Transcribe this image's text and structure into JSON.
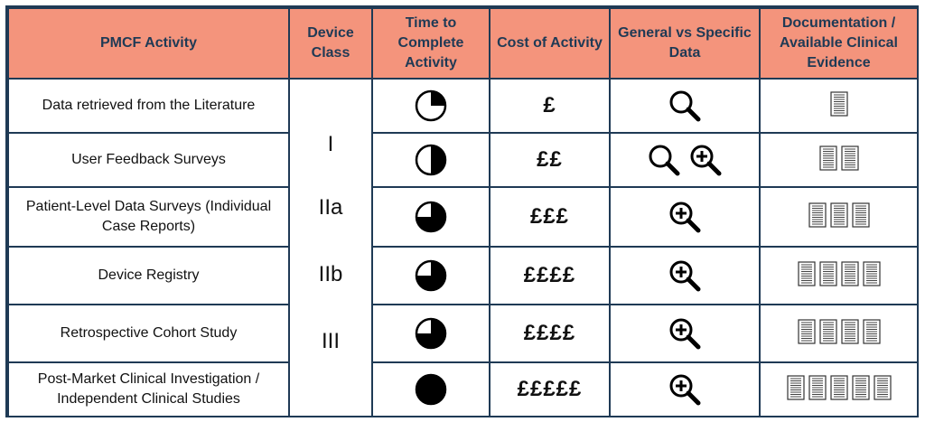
{
  "headers": {
    "activity": "PMCF Activity",
    "device_class": "Device Class",
    "time": "Time to Complete Activity",
    "cost": "Cost of Activity",
    "data_type": "General vs Specific Data",
    "documentation": "Documentation / Available Clinical Evidence"
  },
  "device_classes": [
    "I",
    "IIa",
    "IIb",
    "III"
  ],
  "rows": [
    {
      "activity": "Data retrieved from the Literature",
      "time_fraction": 0.25,
      "cost": "£",
      "data_icons": [
        "general-search-icon"
      ],
      "doc_count": 1
    },
    {
      "activity": "User Feedback Surveys",
      "time_fraction": 0.5,
      "cost": "££",
      "data_icons": [
        "general-search-icon",
        "specific-zoom-in-icon"
      ],
      "doc_count": 2
    },
    {
      "activity": "Patient-Level Data Surveys (Individual Case Reports)",
      "time_fraction": 0.75,
      "cost": "£££",
      "data_icons": [
        "specific-zoom-in-icon"
      ],
      "doc_count": 3
    },
    {
      "activity": "Device Registry",
      "time_fraction": 0.75,
      "cost": "££££",
      "data_icons": [
        "specific-zoom-in-icon"
      ],
      "doc_count": 4
    },
    {
      "activity": "Retrospective Cohort Study",
      "time_fraction": 0.75,
      "cost": "££££",
      "data_icons": [
        "specific-zoom-in-icon"
      ],
      "doc_count": 4
    },
    {
      "activity": "Post-Market Clinical Investigation / Independent Clinical Studies",
      "time_fraction": 1.0,
      "cost": "£££££",
      "data_icons": [
        "specific-zoom-in-icon"
      ],
      "doc_count": 5
    }
  ],
  "colors": {
    "header_bg": "#f4947c",
    "border": "#1f3a55",
    "header_text": "#1f3a55"
  }
}
